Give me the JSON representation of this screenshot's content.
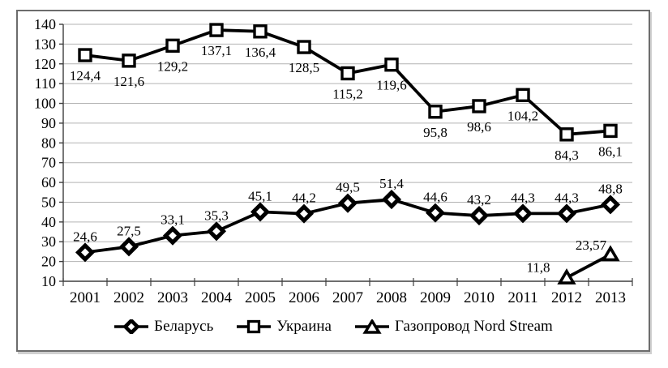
{
  "figure": {
    "background": "#ffffff",
    "frame_border_color": "#6c6c6c"
  },
  "chart_data": {
    "type": "line",
    "title": "",
    "xlabel": "",
    "ylabel": "",
    "categories": [
      "2001",
      "2002",
      "2003",
      "2004",
      "2005",
      "2006",
      "2007",
      "2008",
      "2009",
      "2010",
      "2011",
      "2012",
      "2013"
    ],
    "ylim": [
      10,
      140
    ],
    "yticks": [
      10,
      20,
      30,
      40,
      50,
      60,
      70,
      80,
      90,
      100,
      110,
      120,
      130,
      140
    ],
    "grid": true,
    "legend_position": "bottom",
    "line_color": "#000000",
    "grid_color": "#b3b3b3",
    "axis_color": "#3f3f3f",
    "series": [
      {
        "name": "Беларусь",
        "marker": "diamond",
        "label_position": "above",
        "values": [
          24.6,
          27.5,
          33.1,
          35.3,
          45.1,
          44.2,
          49.5,
          51.4,
          44.6,
          43.2,
          44.3,
          44.3,
          48.8
        ],
        "labels": [
          "24,6",
          "27,5",
          "33,1",
          "35,3",
          "45,1",
          "44,2",
          "49,5",
          "51,4",
          "44,6",
          "43,2",
          "44,3",
          "44,3",
          "48,8"
        ]
      },
      {
        "name": "Украина",
        "marker": "square",
        "label_position": "below",
        "values": [
          124.4,
          121.6,
          129.2,
          137.1,
          136.4,
          128.5,
          115.2,
          119.6,
          95.8,
          98.6,
          104.2,
          84.3,
          86.1
        ],
        "labels": [
          "124,4",
          "121,6",
          "129,2",
          "137,1",
          "136,4",
          "128,5",
          "115,2",
          "119,6",
          "95,8",
          "98,6",
          "104,2",
          "84,3",
          "86,1"
        ]
      },
      {
        "name": "Газопровод Nord Stream",
        "marker": "triangle",
        "label_position": "custom",
        "values": [
          null,
          null,
          null,
          null,
          null,
          null,
          null,
          null,
          null,
          null,
          null,
          11.8,
          23.57
        ],
        "labels": [
          "",
          "",
          "",
          "",
          "",
          "",
          "",
          "",
          "",
          "",
          "",
          "11,8",
          "23,57"
        ],
        "label_offsets": [
          null,
          null,
          null,
          null,
          null,
          null,
          null,
          null,
          null,
          null,
          null,
          [
            -35,
            -7
          ],
          [
            -24,
            -6
          ]
        ]
      }
    ]
  }
}
